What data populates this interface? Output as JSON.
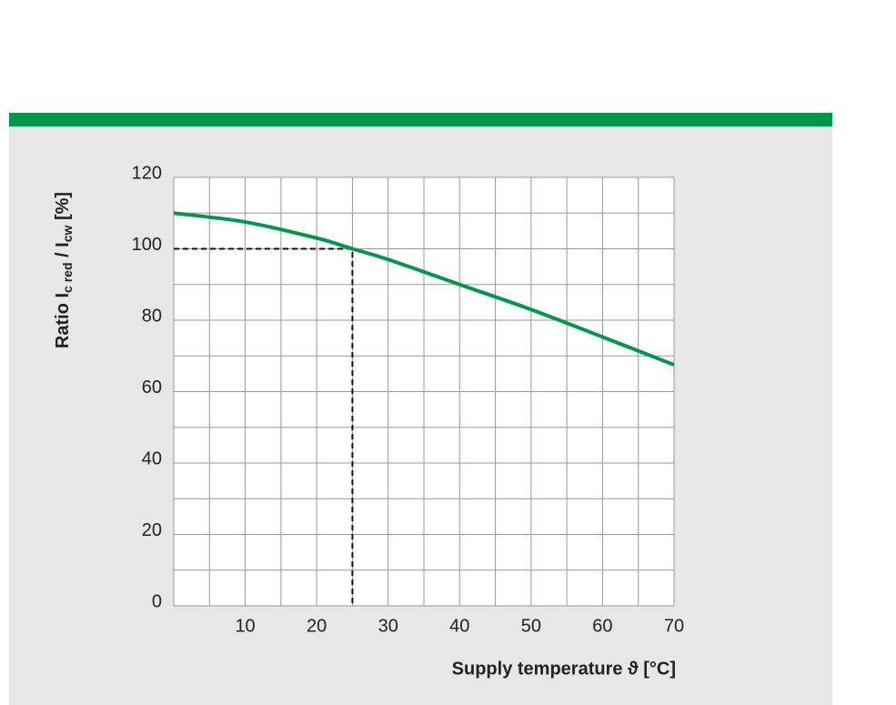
{
  "chart_data": {
    "type": "line",
    "xlabel": "Supply temperature ϑ [°C]",
    "ylabel": [
      "Ratio I",
      "c red",
      " / I",
      "cw",
      " [%]"
    ],
    "x": [
      0,
      10,
      20,
      25,
      30,
      40,
      50,
      60,
      70
    ],
    "values": [
      110,
      107.5,
      103,
      100,
      97,
      90,
      83,
      75.3,
      67.5
    ],
    "color": "#00964b",
    "xlim": [
      0,
      70
    ],
    "ylim": [
      0,
      120
    ],
    "xticks": [
      10,
      20,
      30,
      40,
      50,
      60,
      70
    ],
    "yticks": [
      0,
      20,
      40,
      60,
      80,
      100,
      120
    ],
    "xgrid": [
      0,
      5,
      10,
      15,
      20,
      25,
      30,
      35,
      40,
      45,
      50,
      55,
      60,
      65,
      70
    ],
    "ygrid": [
      0,
      10,
      20,
      30,
      40,
      50,
      60,
      70,
      80,
      90,
      100,
      110,
      120
    ],
    "grid": true,
    "reference": {
      "x": 25,
      "y": 100
    }
  }
}
